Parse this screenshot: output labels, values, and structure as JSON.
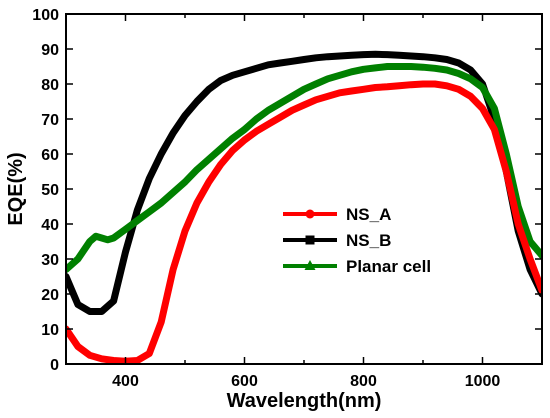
{
  "chart_data": {
    "type": "line",
    "xlabel": "Wavelength(nm)",
    "ylabel": "EQE(%)",
    "xlim": [
      300,
      1100
    ],
    "ylim": [
      0,
      100
    ],
    "xticks": [
      400,
      600,
      800,
      1000
    ],
    "yticks": [
      0,
      10,
      20,
      30,
      40,
      50,
      60,
      70,
      80,
      90,
      100
    ],
    "grid": false,
    "legend_position": "center-right",
    "series": [
      {
        "name": "NS_A",
        "color": "#ff0000",
        "marker": "circle",
        "x": [
          300,
          320,
          340,
          360,
          380,
          400,
          420,
          440,
          460,
          480,
          500,
          520,
          540,
          560,
          580,
          600,
          620,
          640,
          660,
          680,
          700,
          720,
          740,
          760,
          780,
          800,
          820,
          840,
          860,
          880,
          900,
          920,
          940,
          960,
          980,
          1000,
          1020,
          1040,
          1060,
          1080,
          1100
        ],
        "y": [
          10,
          5,
          2.5,
          1.5,
          1,
          0.8,
          1,
          3,
          12,
          27,
          38,
          46,
          52,
          57,
          61,
          64,
          66.5,
          68.5,
          70.5,
          72.5,
          74,
          75.5,
          76.5,
          77.5,
          78,
          78.5,
          79,
          79.2,
          79.5,
          79.8,
          80,
          80,
          79.5,
          78.5,
          76.5,
          73,
          67,
          55,
          40,
          30,
          21
        ]
      },
      {
        "name": "NS_B",
        "color": "#000000",
        "marker": "square",
        "x": [
          300,
          320,
          340,
          360,
          380,
          400,
          420,
          440,
          460,
          480,
          500,
          520,
          540,
          560,
          580,
          600,
          620,
          640,
          660,
          680,
          700,
          720,
          740,
          760,
          780,
          800,
          820,
          840,
          860,
          880,
          900,
          920,
          940,
          960,
          980,
          1000,
          1020,
          1040,
          1060,
          1080,
          1100
        ],
        "y": [
          25,
          17,
          15,
          15,
          18,
          32,
          44,
          53,
          60,
          66,
          71,
          75,
          78.5,
          81,
          82.5,
          83.5,
          84.5,
          85.5,
          86,
          86.5,
          87,
          87.5,
          87.8,
          88,
          88.2,
          88.4,
          88.5,
          88.4,
          88.2,
          88,
          87.8,
          87.5,
          87,
          86,
          84,
          80,
          70,
          55,
          38,
          27,
          20
        ]
      },
      {
        "name": "Planar cell",
        "color": "#008000",
        "marker": "triangle",
        "x": [
          300,
          320,
          340,
          350,
          360,
          370,
          380,
          400,
          420,
          440,
          460,
          480,
          500,
          520,
          540,
          560,
          580,
          600,
          620,
          640,
          660,
          680,
          700,
          720,
          740,
          760,
          780,
          800,
          820,
          840,
          860,
          880,
          900,
          920,
          940,
          960,
          980,
          1000,
          1020,
          1040,
          1060,
          1080,
          1100
        ],
        "y": [
          27,
          30,
          35,
          36.5,
          36,
          35.5,
          36,
          38.5,
          41,
          43.5,
          46,
          49,
          52,
          55.5,
          58.5,
          61.5,
          64.5,
          67,
          70,
          72.5,
          74.5,
          76.5,
          78.5,
          80,
          81.5,
          82.5,
          83.5,
          84.2,
          84.6,
          85,
          85,
          85,
          84.8,
          84.5,
          84,
          83,
          81.5,
          79,
          73,
          60,
          45,
          35,
          31
        ]
      }
    ]
  }
}
